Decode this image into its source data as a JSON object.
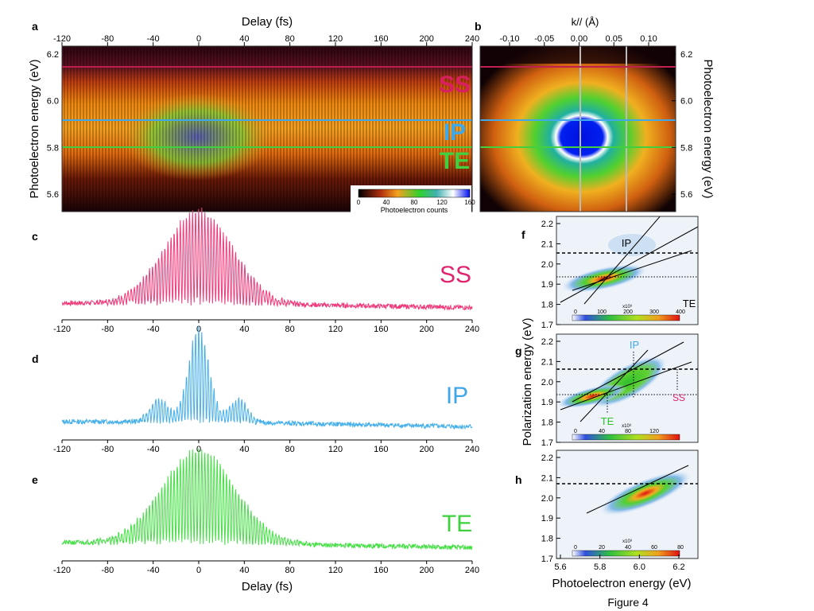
{
  "figure": {
    "caption": "Figure 4",
    "delay_label": "Delay (fs)",
    "delay_ticks": [
      "-120",
      "-80",
      "-40",
      "0",
      "40",
      "80",
      "120",
      "160",
      "200",
      "240"
    ],
    "pe_label": "Photoelectron energy (eV)",
    "pe_label_right": "Photoelectron energy (eV)",
    "pe_ticks": [
      "6.2",
      "6.0",
      "5.8",
      "5.6"
    ],
    "kpar_label": "k// (Å)",
    "k_ticks": [
      "-0.10",
      "-0.05",
      "0.00",
      "0.05",
      "0.10"
    ],
    "pol_label": "Polarization energy (eV)",
    "pol_ticks": [
      "2.2",
      "2.1",
      "2.0",
      "1.9",
      "1.8",
      "1.7"
    ],
    "pe_x_ticks": [
      "5.6",
      "5.8",
      "6.0",
      "6.2"
    ],
    "colorbar_label": "Photoelectron counts",
    "colorbar_ticks": [
      "0",
      "40",
      "80",
      "120",
      "160"
    ],
    "colors": {
      "ss": "#e0246e",
      "ip": "#3fa6e8",
      "te": "#3dd23d",
      "ss_trace": "#f03a7a",
      "ip_trace": "#47b0ea",
      "te_trace": "#46e046"
    }
  },
  "panels": {
    "a": {
      "letter": "a",
      "ss": "SS",
      "ip": "IP",
      "te": "TE"
    },
    "b": {
      "letter": "b"
    },
    "c": {
      "letter": "c",
      "state": "SS"
    },
    "d": {
      "letter": "d",
      "state": "IP"
    },
    "e": {
      "letter": "e",
      "state": "TE"
    },
    "f": {
      "letter": "f",
      "ip": "IP",
      "te": "TE",
      "cb_scale": "x10³",
      "cb_ticks": [
        "0",
        "100",
        "200",
        "300",
        "400"
      ]
    },
    "g": {
      "letter": "g",
      "ip": "IP",
      "te": "TE",
      "ss": "SS",
      "cb_scale": "x10³",
      "cb_ticks": [
        "0",
        "40",
        "80",
        "120"
      ]
    },
    "h": {
      "letter": "h",
      "cb_scale": "x10³",
      "cb_ticks": [
        "0",
        "20",
        "40",
        "60",
        "80"
      ]
    }
  },
  "chart_data": [
    {
      "type": "heatmap",
      "panel": "a",
      "title": "",
      "xlabel": "Delay (fs)",
      "ylabel": "Photoelectron energy (eV)",
      "xlim": [
        -120,
        240
      ],
      "ylim": [
        5.52,
        6.22
      ],
      "annotations": [
        {
          "label": "SS",
          "energy": 6.14
        },
        {
          "label": "IP",
          "energy": 5.91
        },
        {
          "label": "TE",
          "energy": 5.8
        }
      ]
    },
    {
      "type": "heatmap",
      "panel": "b",
      "xlabel": "k// (Å)",
      "ylabel": "Photoelectron energy (eV)",
      "xlim": [
        -0.15,
        0.14
      ],
      "ylim": [
        5.52,
        6.22
      ]
    },
    {
      "type": "line",
      "panel": "c",
      "series": [
        {
          "name": "SS",
          "peak_delay_fs": 0,
          "envelope_fwhm_fs": 70
        }
      ],
      "xlim": [
        -120,
        240
      ]
    },
    {
      "type": "line",
      "panel": "d",
      "series": [
        {
          "name": "IP",
          "peak_delay_fs": 0,
          "envelope_fwhm_fs": 20
        }
      ],
      "xlim": [
        -120,
        240
      ]
    },
    {
      "type": "line",
      "panel": "e",
      "series": [
        {
          "name": "TE",
          "peak_delay_fs": 0,
          "envelope_fwhm_fs": 90
        }
      ],
      "xlim": [
        -120,
        240
      ],
      "xlabel": "Delay (fs)"
    },
    {
      "type": "heatmap",
      "panel": "f",
      "xlim": [
        5.6,
        6.3
      ],
      "ylim": [
        1.7,
        2.23
      ]
    },
    {
      "type": "heatmap",
      "panel": "g",
      "xlim": [
        5.6,
        6.3
      ],
      "ylim": [
        1.7,
        2.23
      ]
    },
    {
      "type": "heatmap",
      "panel": "h",
      "xlim": [
        5.6,
        6.3
      ],
      "ylim": [
        1.7,
        2.23
      ],
      "xlabel": "Photoelectron energy (eV)"
    }
  ]
}
